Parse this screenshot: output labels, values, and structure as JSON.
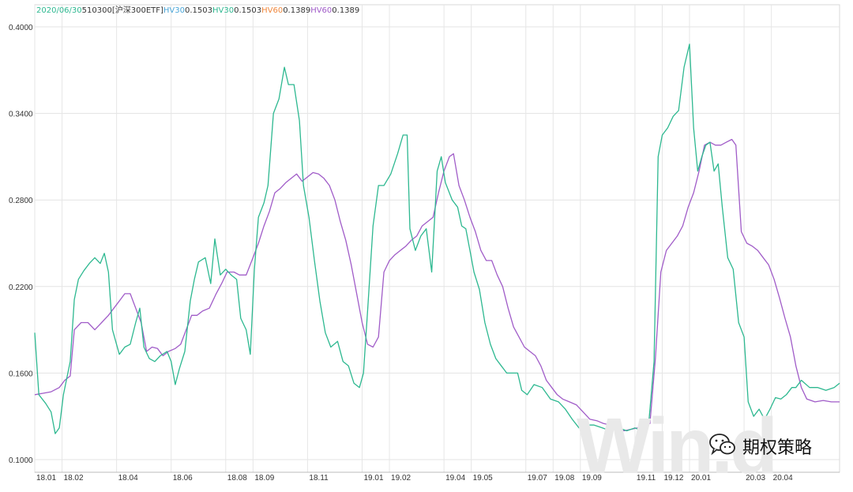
{
  "legend": {
    "date": "2020/06/30",
    "code": "510300",
    "name": "[沪深300ETF]",
    "items": [
      {
        "label": "HV30",
        "value": "0.1503",
        "color": "#4aa6d8"
      },
      {
        "label": "HV30",
        "value": "0.1503",
        "color": "#2db890"
      },
      {
        "label": "HV60",
        "value": "0.1389",
        "color": "#f0883e"
      },
      {
        "label": "HV60",
        "value": "0.1389",
        "color": "#a05cc8"
      }
    ],
    "date_color": "#2db890",
    "text_color": "#333333"
  },
  "watermark": "Win.d",
  "brand": {
    "text": "期权策略",
    "icon": "wechat-icon"
  },
  "chart_data": {
    "type": "line",
    "title": "",
    "xlabel": "",
    "ylabel": "",
    "ylim": [
      0.1,
      0.4
    ],
    "yticks": [
      "0.4000",
      "0.3400",
      "0.2800",
      "0.2200",
      "0.1600",
      "0.1000"
    ],
    "xticks": [
      {
        "t": 0,
        "label": "18.01"
      },
      {
        "t": 1,
        "label": "18.02"
      },
      {
        "t": 3,
        "label": "18.04"
      },
      {
        "t": 5,
        "label": "18.06"
      },
      {
        "t": 7,
        "label": "18.08"
      },
      {
        "t": 8,
        "label": "18.09"
      },
      {
        "t": 10,
        "label": "18.11"
      },
      {
        "t": 12,
        "label": "19.01"
      },
      {
        "t": 13,
        "label": "19.02"
      },
      {
        "t": 15,
        "label": "19.04"
      },
      {
        "t": 16,
        "label": "19.05"
      },
      {
        "t": 18,
        "label": "19.07"
      },
      {
        "t": 19,
        "label": "19.08"
      },
      {
        "t": 20,
        "label": "19.09"
      },
      {
        "t": 22,
        "label": "19.11"
      },
      {
        "t": 23,
        "label": "19.12"
      },
      {
        "t": 24,
        "label": "20.01"
      },
      {
        "t": 26,
        "label": "20.03"
      },
      {
        "t": 27,
        "label": "20.04"
      }
    ],
    "x_unit_note": "t = months elapsed since 2018-01",
    "x_end": 29.5,
    "grid": true,
    "series": [
      {
        "name": "HV30",
        "color": "#2db890",
        "points": [
          [
            0.0,
            0.188
          ],
          [
            0.15,
            0.145
          ],
          [
            0.4,
            0.139
          ],
          [
            0.6,
            0.133
          ],
          [
            0.75,
            0.118
          ],
          [
            0.9,
            0.122
          ],
          [
            1.05,
            0.145
          ],
          [
            1.3,
            0.168
          ],
          [
            1.45,
            0.211
          ],
          [
            1.6,
            0.225
          ],
          [
            1.8,
            0.231
          ],
          [
            2.0,
            0.236
          ],
          [
            2.2,
            0.24
          ],
          [
            2.4,
            0.236
          ],
          [
            2.55,
            0.243
          ],
          [
            2.7,
            0.23
          ],
          [
            2.85,
            0.19
          ],
          [
            3.1,
            0.173
          ],
          [
            3.3,
            0.178
          ],
          [
            3.5,
            0.18
          ],
          [
            3.7,
            0.195
          ],
          [
            3.85,
            0.205
          ],
          [
            4.0,
            0.178
          ],
          [
            4.2,
            0.17
          ],
          [
            4.4,
            0.168
          ],
          [
            4.6,
            0.172
          ],
          [
            4.85,
            0.175
          ],
          [
            5.0,
            0.168
          ],
          [
            5.15,
            0.152
          ],
          [
            5.3,
            0.163
          ],
          [
            5.5,
            0.175
          ],
          [
            5.7,
            0.21
          ],
          [
            5.85,
            0.225
          ],
          [
            6.0,
            0.237
          ],
          [
            6.25,
            0.24
          ],
          [
            6.45,
            0.222
          ],
          [
            6.6,
            0.253
          ],
          [
            6.8,
            0.228
          ],
          [
            7.0,
            0.232
          ],
          [
            7.2,
            0.228
          ],
          [
            7.4,
            0.225
          ],
          [
            7.55,
            0.198
          ],
          [
            7.75,
            0.19
          ],
          [
            7.9,
            0.173
          ],
          [
            8.05,
            0.232
          ],
          [
            8.2,
            0.268
          ],
          [
            8.4,
            0.278
          ],
          [
            8.55,
            0.29
          ],
          [
            8.75,
            0.34
          ],
          [
            8.95,
            0.35
          ],
          [
            9.15,
            0.372
          ],
          [
            9.3,
            0.36
          ],
          [
            9.5,
            0.36
          ],
          [
            9.7,
            0.335
          ],
          [
            9.85,
            0.29
          ],
          [
            10.05,
            0.268
          ],
          [
            10.25,
            0.238
          ],
          [
            10.45,
            0.21
          ],
          [
            10.65,
            0.188
          ],
          [
            10.85,
            0.178
          ],
          [
            11.1,
            0.182
          ],
          [
            11.3,
            0.168
          ],
          [
            11.5,
            0.165
          ],
          [
            11.7,
            0.153
          ],
          [
            11.9,
            0.15
          ],
          [
            12.05,
            0.16
          ],
          [
            12.2,
            0.203
          ],
          [
            12.4,
            0.262
          ],
          [
            12.6,
            0.29
          ],
          [
            12.8,
            0.29
          ],
          [
            13.05,
            0.298
          ],
          [
            13.3,
            0.312
          ],
          [
            13.5,
            0.325
          ],
          [
            13.65,
            0.325
          ],
          [
            13.75,
            0.26
          ],
          [
            13.95,
            0.245
          ],
          [
            14.15,
            0.255
          ],
          [
            14.35,
            0.26
          ],
          [
            14.55,
            0.23
          ],
          [
            14.75,
            0.3
          ],
          [
            14.9,
            0.31
          ],
          [
            15.05,
            0.292
          ],
          [
            15.3,
            0.28
          ],
          [
            15.5,
            0.275
          ],
          [
            15.65,
            0.262
          ],
          [
            15.8,
            0.26
          ],
          [
            15.95,
            0.245
          ],
          [
            16.1,
            0.23
          ],
          [
            16.3,
            0.218
          ],
          [
            16.5,
            0.195
          ],
          [
            16.7,
            0.18
          ],
          [
            16.9,
            0.17
          ],
          [
            17.1,
            0.165
          ],
          [
            17.3,
            0.16
          ],
          [
            17.5,
            0.16
          ],
          [
            17.7,
            0.16
          ],
          [
            17.85,
            0.148
          ],
          [
            18.05,
            0.145
          ],
          [
            18.3,
            0.152
          ],
          [
            18.6,
            0.15
          ],
          [
            18.9,
            0.142
          ],
          [
            19.2,
            0.14
          ],
          [
            19.45,
            0.135
          ],
          [
            19.7,
            0.128
          ],
          [
            19.95,
            0.122
          ],
          [
            20.2,
            0.124
          ],
          [
            20.5,
            0.124
          ],
          [
            20.8,
            0.122
          ],
          [
            21.1,
            0.12
          ],
          [
            21.4,
            0.122
          ],
          [
            21.7,
            0.12
          ],
          [
            22.0,
            0.122
          ],
          [
            22.25,
            0.12
          ],
          [
            22.5,
            0.124
          ],
          [
            22.7,
            0.168
          ],
          [
            22.85,
            0.31
          ],
          [
            23.0,
            0.325
          ],
          [
            23.2,
            0.33
          ],
          [
            23.4,
            0.338
          ],
          [
            23.6,
            0.342
          ],
          [
            23.8,
            0.372
          ],
          [
            24.0,
            0.388
          ],
          [
            24.15,
            0.33
          ],
          [
            24.3,
            0.3
          ],
          [
            24.45,
            0.31
          ],
          [
            24.6,
            0.318
          ],
          [
            24.75,
            0.32
          ],
          [
            24.9,
            0.3
          ],
          [
            25.05,
            0.305
          ],
          [
            25.2,
            0.275
          ],
          [
            25.4,
            0.24
          ],
          [
            25.6,
            0.232
          ],
          [
            25.8,
            0.195
          ],
          [
            26.0,
            0.185
          ],
          [
            26.15,
            0.14
          ],
          [
            26.35,
            0.13
          ],
          [
            26.55,
            0.135
          ],
          [
            26.75,
            0.128
          ],
          [
            26.95,
            0.135
          ],
          [
            27.15,
            0.143
          ],
          [
            27.35,
            0.142
          ],
          [
            27.55,
            0.145
          ],
          [
            27.75,
            0.15
          ],
          [
            27.9,
            0.15
          ],
          [
            28.1,
            0.155
          ],
          [
            28.4,
            0.15
          ],
          [
            28.7,
            0.15
          ],
          [
            29.0,
            0.148
          ],
          [
            29.3,
            0.15
          ],
          [
            29.5,
            0.153
          ]
        ]
      },
      {
        "name": "HV60",
        "color": "#a05cc8",
        "points": [
          [
            0.0,
            0.145
          ],
          [
            0.3,
            0.146
          ],
          [
            0.6,
            0.147
          ],
          [
            0.9,
            0.15
          ],
          [
            1.1,
            0.155
          ],
          [
            1.3,
            0.158
          ],
          [
            1.45,
            0.19
          ],
          [
            1.7,
            0.195
          ],
          [
            1.95,
            0.195
          ],
          [
            2.2,
            0.19
          ],
          [
            2.45,
            0.195
          ],
          [
            2.7,
            0.2
          ],
          [
            2.9,
            0.205
          ],
          [
            3.1,
            0.21
          ],
          [
            3.3,
            0.215
          ],
          [
            3.5,
            0.215
          ],
          [
            3.7,
            0.205
          ],
          [
            3.9,
            0.195
          ],
          [
            4.1,
            0.175
          ],
          [
            4.3,
            0.178
          ],
          [
            4.5,
            0.177
          ],
          [
            4.7,
            0.172
          ],
          [
            4.9,
            0.175
          ],
          [
            5.15,
            0.177
          ],
          [
            5.35,
            0.18
          ],
          [
            5.55,
            0.19
          ],
          [
            5.75,
            0.2
          ],
          [
            5.95,
            0.2
          ],
          [
            6.15,
            0.203
          ],
          [
            6.4,
            0.205
          ],
          [
            6.65,
            0.215
          ],
          [
            6.85,
            0.222
          ],
          [
            7.05,
            0.23
          ],
          [
            7.3,
            0.23
          ],
          [
            7.5,
            0.228
          ],
          [
            7.75,
            0.228
          ],
          [
            8.0,
            0.24
          ],
          [
            8.2,
            0.25
          ],
          [
            8.4,
            0.262
          ],
          [
            8.6,
            0.272
          ],
          [
            8.8,
            0.285
          ],
          [
            9.0,
            0.288
          ],
          [
            9.2,
            0.292
          ],
          [
            9.4,
            0.295
          ],
          [
            9.6,
            0.298
          ],
          [
            9.8,
            0.293
          ],
          [
            10.0,
            0.296
          ],
          [
            10.2,
            0.299
          ],
          [
            10.4,
            0.298
          ],
          [
            10.6,
            0.295
          ],
          [
            10.8,
            0.29
          ],
          [
            11.0,
            0.28
          ],
          [
            11.2,
            0.265
          ],
          [
            11.4,
            0.252
          ],
          [
            11.6,
            0.235
          ],
          [
            11.8,
            0.215
          ],
          [
            12.0,
            0.195
          ],
          [
            12.2,
            0.18
          ],
          [
            12.4,
            0.178
          ],
          [
            12.6,
            0.185
          ],
          [
            12.8,
            0.23
          ],
          [
            13.0,
            0.238
          ],
          [
            13.2,
            0.242
          ],
          [
            13.4,
            0.245
          ],
          [
            13.6,
            0.248
          ],
          [
            13.8,
            0.252
          ],
          [
            14.0,
            0.255
          ],
          [
            14.2,
            0.262
          ],
          [
            14.4,
            0.265
          ],
          [
            14.6,
            0.268
          ],
          [
            14.8,
            0.285
          ],
          [
            15.0,
            0.3
          ],
          [
            15.2,
            0.31
          ],
          [
            15.35,
            0.312
          ],
          [
            15.55,
            0.29
          ],
          [
            15.75,
            0.28
          ],
          [
            15.95,
            0.268
          ],
          [
            16.15,
            0.258
          ],
          [
            16.35,
            0.245
          ],
          [
            16.55,
            0.238
          ],
          [
            16.75,
            0.238
          ],
          [
            16.95,
            0.228
          ],
          [
            17.15,
            0.22
          ],
          [
            17.35,
            0.205
          ],
          [
            17.55,
            0.192
          ],
          [
            17.75,
            0.185
          ],
          [
            17.95,
            0.178
          ],
          [
            18.15,
            0.175
          ],
          [
            18.35,
            0.172
          ],
          [
            18.55,
            0.165
          ],
          [
            18.75,
            0.155
          ],
          [
            18.95,
            0.15
          ],
          [
            19.15,
            0.145
          ],
          [
            19.35,
            0.142
          ],
          [
            19.6,
            0.14
          ],
          [
            19.85,
            0.138
          ],
          [
            20.1,
            0.133
          ],
          [
            20.35,
            0.128
          ],
          [
            20.6,
            0.127
          ],
          [
            20.85,
            0.125
          ],
          [
            21.1,
            0.124
          ],
          [
            21.35,
            0.122
          ],
          [
            21.6,
            0.12
          ],
          [
            21.85,
            0.121
          ],
          [
            22.1,
            0.122
          ],
          [
            22.35,
            0.124
          ],
          [
            22.55,
            0.125
          ],
          [
            22.75,
            0.17
          ],
          [
            22.95,
            0.23
          ],
          [
            23.15,
            0.245
          ],
          [
            23.35,
            0.25
          ],
          [
            23.55,
            0.255
          ],
          [
            23.75,
            0.262
          ],
          [
            23.95,
            0.275
          ],
          [
            24.15,
            0.285
          ],
          [
            24.35,
            0.3
          ],
          [
            24.55,
            0.318
          ],
          [
            24.75,
            0.32
          ],
          [
            24.95,
            0.318
          ],
          [
            25.15,
            0.318
          ],
          [
            25.35,
            0.32
          ],
          [
            25.55,
            0.322
          ],
          [
            25.7,
            0.318
          ],
          [
            25.9,
            0.258
          ],
          [
            26.1,
            0.25
          ],
          [
            26.3,
            0.248
          ],
          [
            26.5,
            0.245
          ],
          [
            26.7,
            0.24
          ],
          [
            26.9,
            0.235
          ],
          [
            27.1,
            0.225
          ],
          [
            27.3,
            0.212
          ],
          [
            27.5,
            0.198
          ],
          [
            27.7,
            0.185
          ],
          [
            27.9,
            0.165
          ],
          [
            28.1,
            0.15
          ],
          [
            28.3,
            0.142
          ],
          [
            28.6,
            0.14
          ],
          [
            28.9,
            0.141
          ],
          [
            29.2,
            0.14
          ],
          [
            29.5,
            0.14
          ]
        ]
      }
    ]
  }
}
